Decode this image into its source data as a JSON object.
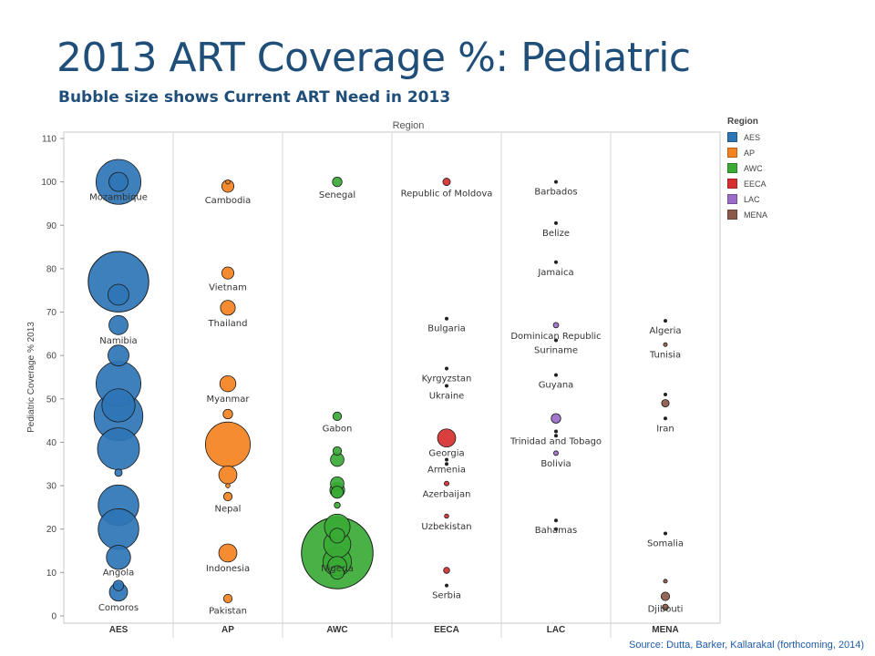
{
  "header": {
    "title": "2013 ART Coverage %: Pediatric",
    "subtitle": "Bubble size shows Current ART Need in 2013"
  },
  "footer": {
    "source": "Source: Dutta, Barker, Kallarakal (forthcoming, 2014)"
  },
  "legend": {
    "title": "Region",
    "items": [
      {
        "label": "AES",
        "color": "#2e75b6"
      },
      {
        "label": "AP",
        "color": "#f58220"
      },
      {
        "label": "AWC",
        "color": "#3aaa35"
      },
      {
        "label": "EECA",
        "color": "#d62f2f"
      },
      {
        "label": "LAC",
        "color": "#9b6bc8"
      },
      {
        "label": "MENA",
        "color": "#8c5a4a"
      }
    ]
  },
  "chart_data": {
    "type": "scatter",
    "top_label": "Region",
    "ylabel": "Pediatric Coverage % 2013",
    "ylim": [
      0,
      110
    ],
    "yticks": [
      0,
      10,
      20,
      30,
      40,
      50,
      60,
      70,
      80,
      90,
      100,
      110
    ],
    "categories": [
      "AES",
      "AP",
      "AWC",
      "EECA",
      "LAC",
      "MENA"
    ],
    "size_measure": "Current ART Need in 2013",
    "grid": false,
    "points": [
      {
        "region": "AES",
        "y": 100,
        "size": 5.5,
        "label": "Mozambique"
      },
      {
        "region": "AES",
        "y": 100,
        "size": 1.0,
        "label": ""
      },
      {
        "region": "AES",
        "y": 77,
        "size": 10.0,
        "label": ""
      },
      {
        "region": "AES",
        "y": 74,
        "size": 1.2,
        "label": ""
      },
      {
        "region": "AES",
        "y": 67,
        "size": 1.0,
        "label": "Namibia"
      },
      {
        "region": "AES",
        "y": 60,
        "size": 1.2,
        "label": ""
      },
      {
        "region": "AES",
        "y": 53.5,
        "size": 5.5,
        "label": ""
      },
      {
        "region": "AES",
        "y": 48.5,
        "size": 3.0,
        "label": ""
      },
      {
        "region": "AES",
        "y": 46,
        "size": 6.5,
        "label": ""
      },
      {
        "region": "AES",
        "y": 38.5,
        "size": 4.8,
        "label": ""
      },
      {
        "region": "AES",
        "y": 33,
        "size": 0.15,
        "label": ""
      },
      {
        "region": "AES",
        "y": 25.5,
        "size": 4.5,
        "label": ""
      },
      {
        "region": "AES",
        "y": 20,
        "size": 4.5,
        "label": ""
      },
      {
        "region": "AES",
        "y": 13.5,
        "size": 1.6,
        "label": "Angola"
      },
      {
        "region": "AES",
        "y": 7,
        "size": 0.3,
        "label": ""
      },
      {
        "region": "AES",
        "y": 5.5,
        "size": 0.9,
        "label": "Comoros"
      },
      {
        "region": "AP",
        "y": 100,
        "size": 0.05,
        "label": ""
      },
      {
        "region": "AP",
        "y": 99,
        "size": 0.4,
        "label": "Cambodia"
      },
      {
        "region": "AP",
        "y": 79,
        "size": 0.4,
        "label": "Vietnam"
      },
      {
        "region": "AP",
        "y": 71,
        "size": 0.6,
        "label": "Thailand"
      },
      {
        "region": "AP",
        "y": 53.5,
        "size": 0.7,
        "label": "Myanmar"
      },
      {
        "region": "AP",
        "y": 46.5,
        "size": 0.25,
        "label": ""
      },
      {
        "region": "AP",
        "y": 39.5,
        "size": 5.5,
        "label": ""
      },
      {
        "region": "AP",
        "y": 32.5,
        "size": 0.9,
        "label": ""
      },
      {
        "region": "AP",
        "y": 30,
        "size": 0.05,
        "label": ""
      },
      {
        "region": "AP",
        "y": 27.5,
        "size": 0.2,
        "label": "Nepal"
      },
      {
        "region": "AP",
        "y": 14.5,
        "size": 0.9,
        "label": "Indonesia"
      },
      {
        "region": "AP",
        "y": 4,
        "size": 0.2,
        "label": "Pakistan"
      },
      {
        "region": "AWC",
        "y": 100,
        "size": 0.25,
        "label": "Senegal"
      },
      {
        "region": "AWC",
        "y": 46,
        "size": 0.2,
        "label": "Gabon"
      },
      {
        "region": "AWC",
        "y": 38,
        "size": 0.2,
        "label": ""
      },
      {
        "region": "AWC",
        "y": 36,
        "size": 0.5,
        "label": ""
      },
      {
        "region": "AWC",
        "y": 30.5,
        "size": 0.5,
        "label": ""
      },
      {
        "region": "AWC",
        "y": 29,
        "size": 0.6,
        "label": ""
      },
      {
        "region": "AWC",
        "y": 28.5,
        "size": 0.4,
        "label": ""
      },
      {
        "region": "AWC",
        "y": 25.5,
        "size": 0.1,
        "label": ""
      },
      {
        "region": "AWC",
        "y": 20.5,
        "size": 1.8,
        "label": ""
      },
      {
        "region": "AWC",
        "y": 18.5,
        "size": 0.6,
        "label": ""
      },
      {
        "region": "AWC",
        "y": 16.5,
        "size": 2.0,
        "label": ""
      },
      {
        "region": "AWC",
        "y": 14.5,
        "size": 14.0,
        "label": "Nigeria"
      },
      {
        "region": "AWC",
        "y": 12.5,
        "size": 2.2,
        "label": ""
      },
      {
        "region": "AWC",
        "y": 11.5,
        "size": 1.0,
        "label": ""
      },
      {
        "region": "AWC",
        "y": 10,
        "size": 0.5,
        "label": ""
      },
      {
        "region": "EECA",
        "y": 100,
        "size": 0.15,
        "label": "Republic of Moldova"
      },
      {
        "region": "EECA",
        "y": 68.5,
        "size": 0.02,
        "label": "Bulgaria"
      },
      {
        "region": "EECA",
        "y": 57,
        "size": 0.02,
        "label": "Kyrgyzstan"
      },
      {
        "region": "EECA",
        "y": 53,
        "size": 0.02,
        "label": "Ukraine"
      },
      {
        "region": "EECA",
        "y": 41,
        "size": 0.9,
        "label": "Georgia"
      },
      {
        "region": "EECA",
        "y": 36,
        "size": 0.02,
        "label": "Armenia"
      },
      {
        "region": "EECA",
        "y": 35,
        "size": 0.02,
        "label": ""
      },
      {
        "region": "EECA",
        "y": 30.5,
        "size": 0.06,
        "label": "Azerbaijan"
      },
      {
        "region": "EECA",
        "y": 23,
        "size": 0.05,
        "label": "Uzbekistan"
      },
      {
        "region": "EECA",
        "y": 10.5,
        "size": 0.1,
        "label": ""
      },
      {
        "region": "EECA",
        "y": 7,
        "size": 0.03,
        "label": "Serbia"
      },
      {
        "region": "LAC",
        "y": 100,
        "size": 0.02,
        "label": "Barbados"
      },
      {
        "region": "LAC",
        "y": 90.5,
        "size": 0.02,
        "label": "Belize"
      },
      {
        "region": "LAC",
        "y": 81.5,
        "size": 0.02,
        "label": "Jamaica"
      },
      {
        "region": "LAC",
        "y": 67,
        "size": 0.08,
        "label": "Dominican Republic"
      },
      {
        "region": "LAC",
        "y": 63.5,
        "size": 0.02,
        "label": "Suriname"
      },
      {
        "region": "LAC",
        "y": 55.5,
        "size": 0.02,
        "label": "Guyana"
      },
      {
        "region": "LAC",
        "y": 45.5,
        "size": 0.25,
        "label": ""
      },
      {
        "region": "LAC",
        "y": 42.5,
        "size": 0.02,
        "label": "Trinidad and Tobago"
      },
      {
        "region": "LAC",
        "y": 41.5,
        "size": 0.02,
        "label": ""
      },
      {
        "region": "LAC",
        "y": 37.5,
        "size": 0.06,
        "label": "Bolivia"
      },
      {
        "region": "LAC",
        "y": 22,
        "size": 0.02,
        "label": "Bahamas"
      },
      {
        "region": "LAC",
        "y": 20,
        "size": 0.02,
        "label": ""
      },
      {
        "region": "MENA",
        "y": 68,
        "size": 0.03,
        "label": "Algeria"
      },
      {
        "region": "MENA",
        "y": 62.5,
        "size": 0.04,
        "label": "Tunisia"
      },
      {
        "region": "MENA",
        "y": 51,
        "size": 0.02,
        "label": ""
      },
      {
        "region": "MENA",
        "y": 49,
        "size": 0.15,
        "label": ""
      },
      {
        "region": "MENA",
        "y": 45.5,
        "size": 0.02,
        "label": "Iran"
      },
      {
        "region": "MENA",
        "y": 19,
        "size": 0.03,
        "label": "Somalia"
      },
      {
        "region": "MENA",
        "y": 8,
        "size": 0.04,
        "label": ""
      },
      {
        "region": "MENA",
        "y": 4.5,
        "size": 0.2,
        "label": "Djibouti"
      },
      {
        "region": "MENA",
        "y": 2,
        "size": 0.1,
        "label": ""
      }
    ]
  }
}
